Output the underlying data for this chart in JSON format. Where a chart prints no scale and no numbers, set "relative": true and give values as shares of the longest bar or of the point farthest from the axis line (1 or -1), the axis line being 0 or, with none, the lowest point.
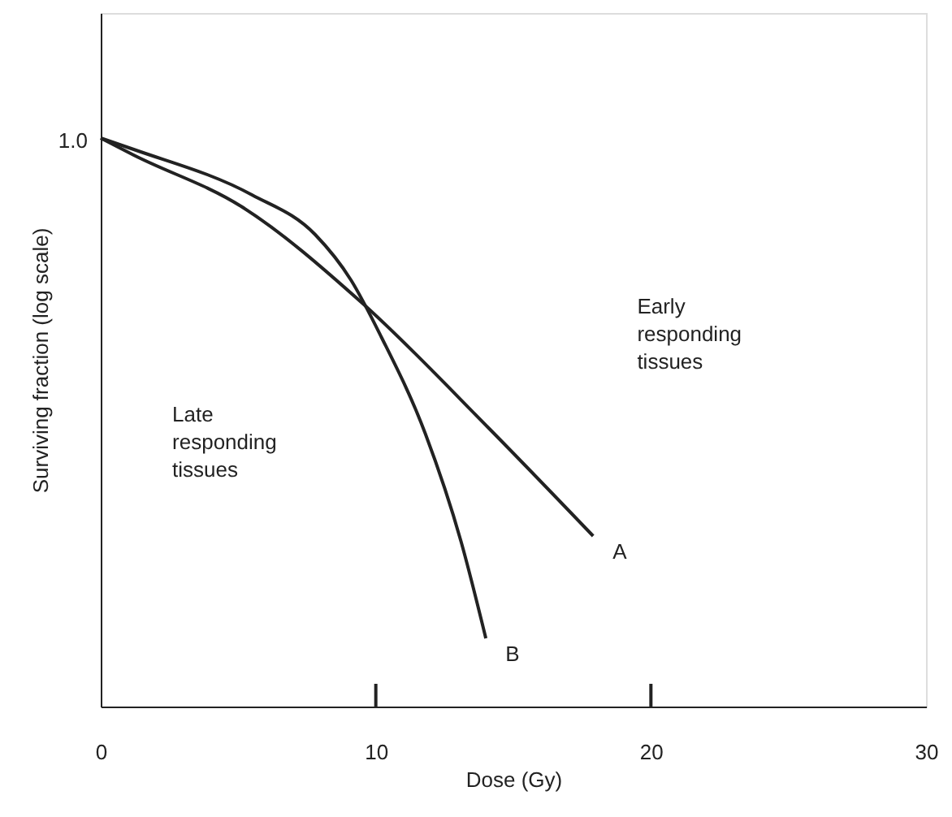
{
  "chart_data": {
    "type": "line",
    "relative": true,
    "xlabel": "Dose (Gy)",
    "ylabel": "Surviving fraction (log scale)",
    "xlim": [
      0,
      30
    ],
    "xticks": [
      0,
      10,
      20,
      30
    ],
    "annotations": [
      "Early responding tissues",
      "Late responding tissues",
      {
        "text": "1.0",
        "x": 0,
        "y": 1
      }
    ],
    "marker": "none",
    "line_style": "solid",
    "grid": false,
    "series": [
      {
        "name": "A",
        "color": "#222222",
        "x": [
          0,
          1.2,
          5.1,
          9.5,
          14.1,
          17.9
        ],
        "values": [
          1,
          0.97,
          0.88,
          0.71,
          0.49,
          0.3
        ]
      },
      {
        "name": "B",
        "color": "#222222",
        "x": [
          0,
          1.2,
          5.5,
          7.8,
          9.1,
          10.2,
          11.8,
          13.1,
          14.0
        ],
        "values": [
          1,
          0.98,
          0.9,
          0.83,
          0.75,
          0.65,
          0.48,
          0.29,
          0.12
        ]
      }
    ]
  }
}
